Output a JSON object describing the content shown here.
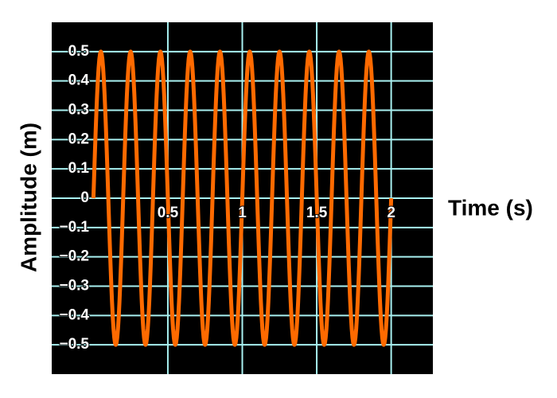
{
  "chart_data": {
    "type": "line",
    "title": "",
    "xlabel": "Time (s)",
    "ylabel": "Amplitude (m)",
    "xlim": [
      -0.28,
      2.28
    ],
    "ylim": [
      -0.6,
      0.6
    ],
    "grid": true,
    "x_ticks": [
      0.5,
      1,
      1.5,
      2
    ],
    "x_tick_labels": [
      "0.5",
      "1",
      "1.5",
      "2"
    ],
    "y_ticks": [
      0.5,
      0.4,
      0.3,
      0.2,
      0.1,
      0,
      -0.1,
      -0.2,
      -0.3,
      -0.4,
      -0.5
    ],
    "y_tick_labels": [
      "0.5",
      "0.4",
      "0.3",
      "0.2",
      "0.1",
      "0",
      "−0.1",
      "−0.2",
      "−0.3",
      "−0.4",
      "−0.5"
    ],
    "series": [
      {
        "function": "sine",
        "amplitude": 0.5,
        "frequency_hz": 5,
        "x_start": 0,
        "x_end": 2,
        "sample_step": 0.005
      }
    ]
  },
  "colors": {
    "background": "#ffffff",
    "plot_background": "#000000",
    "grid": "#a8f0f0",
    "line": "#ff6a00",
    "tick_text": "#ffffff",
    "axis_text": "#000000"
  }
}
